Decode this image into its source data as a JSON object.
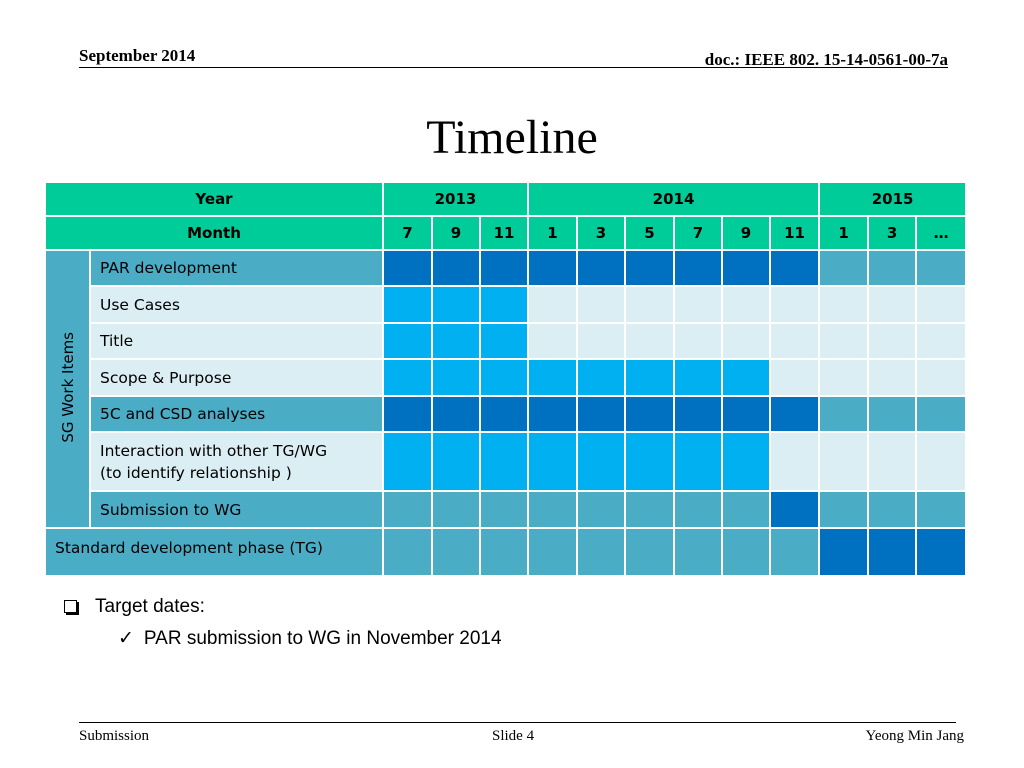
{
  "header": {
    "date": "September 2014",
    "doc_id": "doc.: IEEE 802. 15-14-0561-00-7a"
  },
  "title": "Timeline",
  "table": {
    "year_label": "Year",
    "years": [
      "2013",
      "2014",
      "2015"
    ],
    "month_label": "Month",
    "months": [
      "7",
      "9",
      "11",
      "1",
      "3",
      "5",
      "7",
      "9",
      "11",
      "1",
      "3",
      "…"
    ],
    "group_label": "SG Work Items",
    "rows": [
      {
        "label": "PAR development",
        "cells": [
          "dark",
          "dark",
          "dark",
          "dark",
          "dark",
          "dark",
          "dark",
          "dark",
          "dark",
          "mid",
          "mid",
          "mid"
        ]
      },
      {
        "label": "Use Cases",
        "cells": [
          "bright",
          "bright",
          "bright",
          "light",
          "light",
          "light",
          "light",
          "light",
          "light",
          "light",
          "light",
          "light"
        ]
      },
      {
        "label": "Title",
        "cells": [
          "bright",
          "bright",
          "bright",
          "light",
          "light",
          "light",
          "light",
          "light",
          "light",
          "light",
          "light",
          "light"
        ]
      },
      {
        "label": "Scope & Purpose",
        "cells": [
          "bright",
          "bright",
          "bright",
          "bright",
          "bright",
          "bright",
          "bright",
          "bright",
          "light",
          "light",
          "light",
          "light"
        ]
      },
      {
        "label": "5C and CSD analyses",
        "cells": [
          "dark",
          "dark",
          "dark",
          "dark",
          "dark",
          "dark",
          "dark",
          "dark",
          "dark",
          "mid",
          "mid",
          "mid"
        ]
      },
      {
        "label_line1": "Interaction with other TG/WG",
        "label_line2": "(to identify relationship )",
        "cells": [
          "bright",
          "bright",
          "bright",
          "bright",
          "bright",
          "bright",
          "bright",
          "bright",
          "light",
          "light",
          "light",
          "light"
        ]
      },
      {
        "label": "Submission to WG",
        "cells": [
          "mid",
          "mid",
          "mid",
          "mid",
          "mid",
          "mid",
          "mid",
          "mid",
          "dark",
          "mid",
          "mid",
          "mid"
        ]
      }
    ],
    "standard_row": {
      "label": "Standard development phase (TG)",
      "cells": [
        "mid",
        "mid",
        "mid",
        "mid",
        "mid",
        "mid",
        "mid",
        "mid",
        "mid",
        "dark",
        "dark",
        "dark"
      ]
    },
    "colors": {
      "header": "#00cc99",
      "dark": "#0070c0",
      "bright": "#00b0f0",
      "mid": "#4bacc6",
      "light": "#daeef3"
    }
  },
  "bullets": {
    "level1": "Target dates:",
    "level2": "PAR submission to  WG in November 2014"
  },
  "footer": {
    "left": "Submission",
    "center": "Slide 4",
    "right": "Yeong Min Jang"
  }
}
